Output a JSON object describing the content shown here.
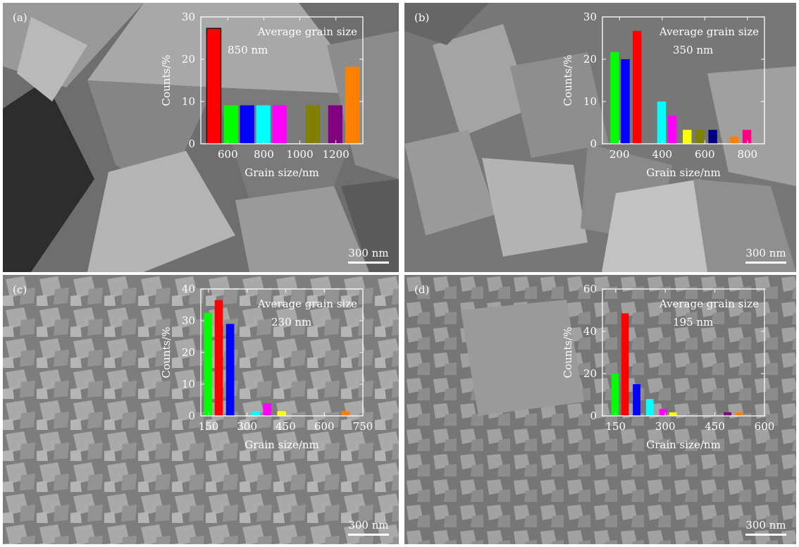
{
  "panels": [
    {
      "label": "(a)",
      "scale_text": "300 nm",
      "annotation": [
        "Average grain size",
        "850 nm"
      ]
    },
    {
      "label": "(b)",
      "scale_text": "300 nm",
      "annotation": [
        "Average grain size",
        "350 nm"
      ]
    },
    {
      "label": "(c)",
      "scale_text": "300 nm",
      "annotation": [
        "Average grain size",
        "230 nm"
      ]
    },
    {
      "label": "(d)",
      "scale_text": "300 nm",
      "annotation": [
        "Average grain size",
        "195 nm"
      ]
    }
  ],
  "chart_data": [
    {
      "type": "bar",
      "xlabel": "Grain size/nm",
      "ylabel": "Counts/%",
      "xlim": [
        450,
        1350
      ],
      "ylim": [
        0,
        30
      ],
      "xticks": [
        600,
        800,
        1000,
        1200
      ],
      "yticks": [
        0,
        10,
        20,
        30
      ],
      "bar_width": 85,
      "bars": [
        {
          "x": 525,
          "value": 27.3,
          "color": "#ff0000"
        },
        {
          "x": 620,
          "value": 9.1,
          "color": "#00ff00"
        },
        {
          "x": 710,
          "value": 9.1,
          "color": "#0000ff"
        },
        {
          "x": 800,
          "value": 9.1,
          "color": "#00ffff"
        },
        {
          "x": 890,
          "value": 9.1,
          "color": "#ff00ff"
        },
        {
          "x": 1075,
          "value": 9.1,
          "color": "#808000"
        },
        {
          "x": 1200,
          "value": 9.1,
          "color": "#800080"
        },
        {
          "x": 1295,
          "value": 18.2,
          "color": "#ff8000"
        }
      ]
    },
    {
      "type": "bar",
      "xlabel": "Grain size/nm",
      "ylabel": "Counts/%",
      "xlim": [
        120,
        880
      ],
      "ylim": [
        0,
        30
      ],
      "xticks": [
        200,
        400,
        600,
        800
      ],
      "yticks": [
        0,
        10,
        20,
        30
      ],
      "bar_width": 46,
      "bars": [
        {
          "x": 180,
          "value": 21.7,
          "color": "#00ff00"
        },
        {
          "x": 230,
          "value": 20.0,
          "color": "#0000ff"
        },
        {
          "x": 285,
          "value": 26.7,
          "color": "#ff0000"
        },
        {
          "x": 400,
          "value": 10.0,
          "color": "#00ffff"
        },
        {
          "x": 450,
          "value": 6.7,
          "color": "#ff00ff"
        },
        {
          "x": 520,
          "value": 3.3,
          "color": "#ffff00"
        },
        {
          "x": 580,
          "value": 3.3,
          "color": "#808000"
        },
        {
          "x": 640,
          "value": 3.3,
          "color": "#000080"
        },
        {
          "x": 740,
          "value": 1.7,
          "color": "#ff8000"
        },
        {
          "x": 800,
          "value": 3.3,
          "color": "#ff0080"
        }
      ]
    },
    {
      "type": "bar",
      "xlabel": "Grain size/nm",
      "ylabel": "Counts/%",
      "xlim": [
        120,
        750
      ],
      "ylim": [
        0,
        40
      ],
      "xticks": [
        150,
        300,
        450,
        600,
        750
      ],
      "yticks": [
        0,
        10,
        20,
        30,
        40
      ],
      "bar_width": 36,
      "bars": [
        {
          "x": 150,
          "value": 32.5,
          "color": "#00ff00"
        },
        {
          "x": 192,
          "value": 36.5,
          "color": "#ff0000"
        },
        {
          "x": 236,
          "value": 29.0,
          "color": "#0000ff"
        },
        {
          "x": 336,
          "value": 1.5,
          "color": "#00ffff"
        },
        {
          "x": 380,
          "value": 4.0,
          "color": "#ff00ff"
        },
        {
          "x": 435,
          "value": 1.5,
          "color": "#ffff00"
        },
        {
          "x": 685,
          "value": 1.5,
          "color": "#ff8000"
        }
      ]
    },
    {
      "type": "bar",
      "xlabel": "Grain size/nm",
      "ylabel": "Counts/%",
      "xlim": [
        110,
        600
      ],
      "ylim": [
        0,
        60
      ],
      "xticks": [
        150,
        300,
        450,
        600
      ],
      "yticks": [
        0,
        20,
        40,
        60
      ],
      "bar_width": 26,
      "bars": [
        {
          "x": 150,
          "value": 20.0,
          "color": "#00ff00"
        },
        {
          "x": 180,
          "value": 48.5,
          "color": "#ff0000"
        },
        {
          "x": 215,
          "value": 15.0,
          "color": "#0000ff"
        },
        {
          "x": 255,
          "value": 8.0,
          "color": "#00ffff"
        },
        {
          "x": 295,
          "value": 3.3,
          "color": "#ff00ff"
        },
        {
          "x": 325,
          "value": 1.7,
          "color": "#ffff00"
        },
        {
          "x": 490,
          "value": 1.7,
          "color": "#800080"
        },
        {
          "x": 525,
          "value": 1.7,
          "color": "#ff8000"
        }
      ]
    }
  ]
}
